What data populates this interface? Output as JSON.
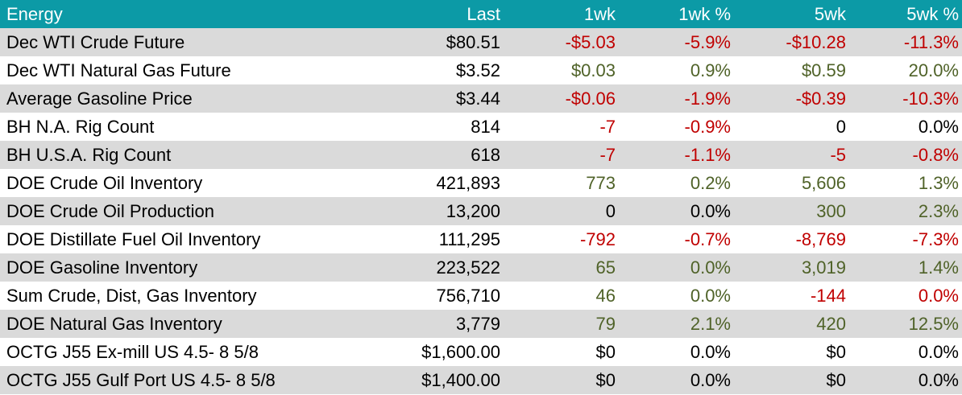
{
  "header": {
    "name": "Energy",
    "last": "Last",
    "wk1": "1wk",
    "wk1_pct": "1wk %",
    "wk5": "5wk",
    "wk5_pct": "5wk %"
  },
  "colors": {
    "header_bg": "#0c9aa6",
    "negative": "#c00000",
    "positive": "#4f6228",
    "stripe": "#dadada"
  },
  "rows": [
    {
      "name": "Dec WTI Crude Future",
      "last": "$80.51",
      "wk1": "-$5.03",
      "wk1_pct": "-5.9%",
      "wk5": "-$10.28",
      "wk5_pct": "-11.3%",
      "c1": "neg",
      "c1p": "neg",
      "c5": "neg",
      "c5p": "neg"
    },
    {
      "name": "Dec WTI Natural Gas Future",
      "last": "$3.52",
      "wk1": "$0.03",
      "wk1_pct": "0.9%",
      "wk5": "$0.59",
      "wk5_pct": "20.0%",
      "c1": "pos",
      "c1p": "pos",
      "c5": "pos",
      "c5p": "pos"
    },
    {
      "name": "Average Gasoline Price",
      "last": "$3.44",
      "wk1": "-$0.06",
      "wk1_pct": "-1.9%",
      "wk5": "-$0.39",
      "wk5_pct": "-10.3%",
      "c1": "neg",
      "c1p": "neg",
      "c5": "neg",
      "c5p": "neg"
    },
    {
      "name": "BH N.A. Rig Count",
      "last": "814",
      "wk1": "-7",
      "wk1_pct": "-0.9%",
      "wk5": "0",
      "wk5_pct": "0.0%",
      "c1": "neg",
      "c1p": "neg",
      "c5": "flat",
      "c5p": "flat"
    },
    {
      "name": "BH U.S.A. Rig Count",
      "last": "618",
      "wk1": "-7",
      "wk1_pct": "-1.1%",
      "wk5": "-5",
      "wk5_pct": "-0.8%",
      "c1": "neg",
      "c1p": "neg",
      "c5": "neg",
      "c5p": "neg"
    },
    {
      "name": "DOE Crude Oil Inventory",
      "last": "421,893",
      "wk1": "773",
      "wk1_pct": "0.2%",
      "wk5": "5,606",
      "wk5_pct": "1.3%",
      "c1": "pos",
      "c1p": "pos",
      "c5": "pos",
      "c5p": "pos"
    },
    {
      "name": "DOE Crude Oil Production",
      "last": "13,200",
      "wk1": "0",
      "wk1_pct": "0.0%",
      "wk5": "300",
      "wk5_pct": "2.3%",
      "c1": "flat",
      "c1p": "flat",
      "c5": "pos",
      "c5p": "pos"
    },
    {
      "name": "DOE Distillate Fuel Oil Inventory",
      "last": "111,295",
      "wk1": "-792",
      "wk1_pct": "-0.7%",
      "wk5": "-8,769",
      "wk5_pct": "-7.3%",
      "c1": "neg",
      "c1p": "neg",
      "c5": "neg",
      "c5p": "neg"
    },
    {
      "name": "DOE Gasoline Inventory",
      "last": "223,522",
      "wk1": "65",
      "wk1_pct": "0.0%",
      "wk5": "3,019",
      "wk5_pct": "1.4%",
      "c1": "pos",
      "c1p": "pos",
      "c5": "pos",
      "c5p": "pos"
    },
    {
      "name": "Sum Crude, Dist, Gas Inventory",
      "last": "756,710",
      "wk1": "46",
      "wk1_pct": "0.0%",
      "wk5": "-144",
      "wk5_pct": "0.0%",
      "c1": "pos",
      "c1p": "pos",
      "c5": "neg",
      "c5p": "neg"
    },
    {
      "name": "DOE Natural Gas Inventory",
      "last": "3,779",
      "wk1": "79",
      "wk1_pct": "2.1%",
      "wk5": "420",
      "wk5_pct": "12.5%",
      "c1": "pos",
      "c1p": "pos",
      "c5": "pos",
      "c5p": "pos"
    },
    {
      "name": "OCTG J55 Ex-mill US 4.5- 8 5/8",
      "last": "$1,600.00",
      "wk1": "$0",
      "wk1_pct": "0.0%",
      "wk5": "$0",
      "wk5_pct": "0.0%",
      "c1": "flat",
      "c1p": "flat",
      "c5": "flat",
      "c5p": "flat"
    },
    {
      "name": "OCTG J55 Gulf Port US 4.5- 8 5/8",
      "last": "$1,400.00",
      "wk1": "$0",
      "wk1_pct": "0.0%",
      "wk5": "$0",
      "wk5_pct": "0.0%",
      "c1": "flat",
      "c1p": "flat",
      "c5": "flat",
      "c5p": "flat"
    }
  ]
}
